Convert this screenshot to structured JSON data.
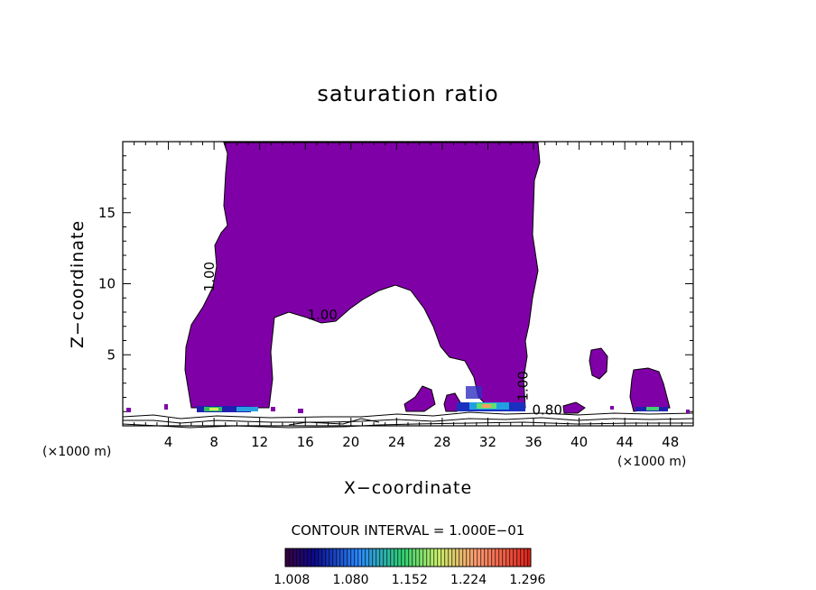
{
  "chart_data": {
    "type": "contour",
    "title": "saturation ratio",
    "xlabel": "X−coordinate",
    "ylabel": "Z−coordinate",
    "x_unit_left": "(×1000 m)",
    "x_unit_right": "(×1000 m)",
    "xlim": [
      0,
      50
    ],
    "ylim": [
      0,
      20
    ],
    "x_ticks": [
      4,
      8,
      12,
      16,
      20,
      24,
      28,
      32,
      36,
      40,
      44,
      48
    ],
    "y_ticks": [
      5,
      10,
      15
    ],
    "contour_interval_label": "CONTOUR INTERVAL = 1.000E−01",
    "contour_labels": [
      {
        "text": "1.00",
        "x": 8,
        "z": 10.5,
        "rotate": -90
      },
      {
        "text": "1.00",
        "x": 17.5,
        "z": 7.5,
        "rotate": 0
      },
      {
        "text": "1.00",
        "x": 35.5,
        "z": 2.8,
        "rotate": -90
      },
      {
        "text": "0.80",
        "x": 37.2,
        "z": 0.8,
        "rotate": 0
      }
    ],
    "colorbar_ticks": [
      "1.008",
      "1.080",
      "1.152",
      "1.224",
      "1.296"
    ],
    "colorbar_range": [
      1.0,
      1.3
    ],
    "fill_color": "#8000a8"
  }
}
